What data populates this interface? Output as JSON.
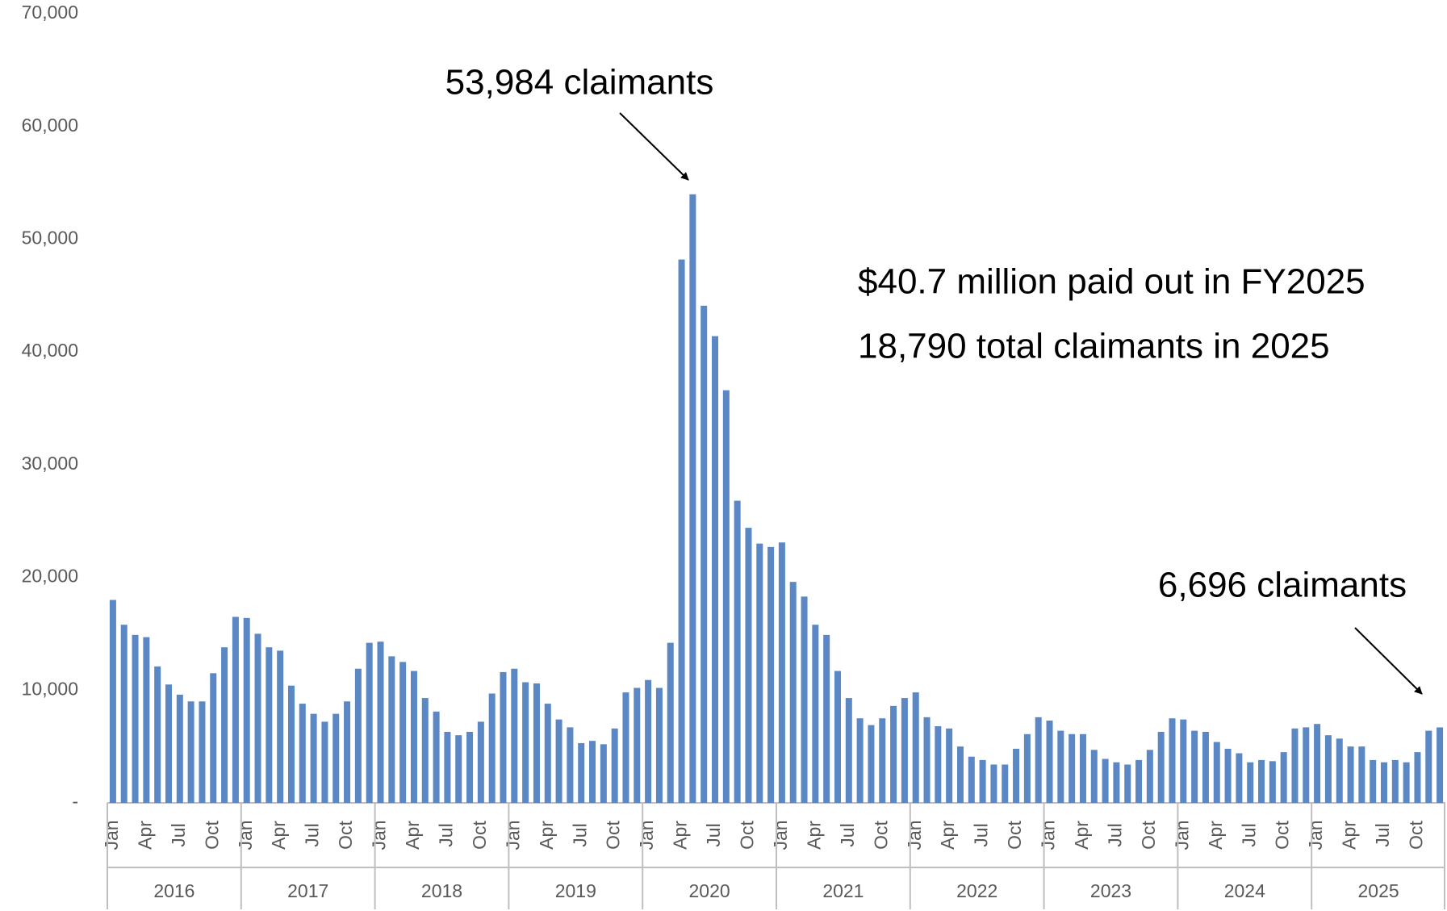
{
  "chart_data": {
    "type": "bar",
    "color": "#5b87c5",
    "ylim": [
      0,
      70000
    ],
    "yticks": [
      {
        "value": 0,
        "label": "-"
      },
      {
        "value": 10000,
        "label": "10,000"
      },
      {
        "value": 20000,
        "label": "20,000"
      },
      {
        "value": 30000,
        "label": "30,000"
      },
      {
        "value": 40000,
        "label": "40,000"
      },
      {
        "value": 50000,
        "label": "50,000"
      },
      {
        "value": 60000,
        "label": "60,000"
      },
      {
        "value": 70000,
        "label": "70,000"
      }
    ],
    "groups": [
      "2016",
      "2017",
      "2018",
      "2019",
      "2020",
      "2021",
      "2022",
      "2023",
      "2024",
      "2025"
    ],
    "categories": [
      "Jan",
      null,
      null,
      "Apr",
      null,
      null,
      "Jul",
      null,
      null,
      "Oct",
      null,
      null,
      "Jan",
      null,
      null,
      "Apr",
      null,
      null,
      "Jul",
      null,
      null,
      "Oct",
      null,
      null,
      "Jan",
      null,
      null,
      "Apr",
      null,
      null,
      "Jul",
      null,
      null,
      "Oct",
      null,
      null,
      "Jan",
      null,
      null,
      "Apr",
      null,
      null,
      "Jul",
      null,
      null,
      "Oct",
      null,
      null,
      "Jan",
      null,
      null,
      "Apr",
      null,
      null,
      "Jul",
      null,
      null,
      "Oct",
      null,
      null,
      "Jan",
      null,
      null,
      "Apr",
      null,
      null,
      "Jul",
      null,
      null,
      "Oct",
      null,
      null,
      "Jan",
      null,
      null,
      "Apr",
      null,
      null,
      "Jul",
      null,
      null,
      "Oct",
      null,
      null,
      "Jan",
      null,
      null,
      "Apr",
      null,
      null,
      "Jul",
      null,
      null,
      "Oct",
      null,
      null,
      "Jan",
      null,
      null,
      "Apr",
      null,
      null,
      "Jul",
      null,
      null,
      "Oct",
      null,
      null,
      "Jan",
      null,
      null,
      "Apr",
      null,
      null,
      "Jul",
      null,
      null,
      "Oct",
      null,
      null
    ],
    "values": [
      18000,
      15800,
      14900,
      14700,
      12100,
      10500,
      9600,
      9000,
      9000,
      11500,
      13800,
      16500,
      16400,
      15000,
      13800,
      13500,
      10400,
      8800,
      7900,
      7200,
      7900,
      9000,
      11900,
      14200,
      14300,
      13000,
      12500,
      11700,
      9300,
      8100,
      6300,
      6000,
      6300,
      7200,
      9700,
      11600,
      11900,
      10700,
      10600,
      8800,
      7400,
      6700,
      5300,
      5500,
      5200,
      6600,
      9800,
      10200,
      10900,
      10200,
      14200,
      48200,
      53984,
      44100,
      41400,
      36600,
      26800,
      24400,
      23000,
      22700,
      23100,
      19600,
      18300,
      15800,
      14900,
      11700,
      9300,
      7500,
      6900,
      7500,
      8600,
      9300,
      9800,
      7600,
      6800,
      6600,
      5000,
      4100,
      3800,
      3400,
      3400,
      4800,
      6100,
      7600,
      7300,
      6400,
      6100,
      6100,
      4700,
      3900,
      3600,
      3400,
      3800,
      4700,
      6300,
      7500,
      7400,
      6400,
      6300,
      5400,
      4800,
      4400,
      3600,
      3800,
      3700,
      4500,
      6600,
      6700,
      7000,
      6000,
      5700,
      5000,
      5000,
      3800,
      3600,
      3800,
      3600,
      4500,
      6400,
      6696
    ],
    "annotations": [
      "53,984 claimants",
      "$40.7 million paid out in FY2025",
      "18,790 total claimants in 2025",
      "6,696 claimants"
    ]
  }
}
